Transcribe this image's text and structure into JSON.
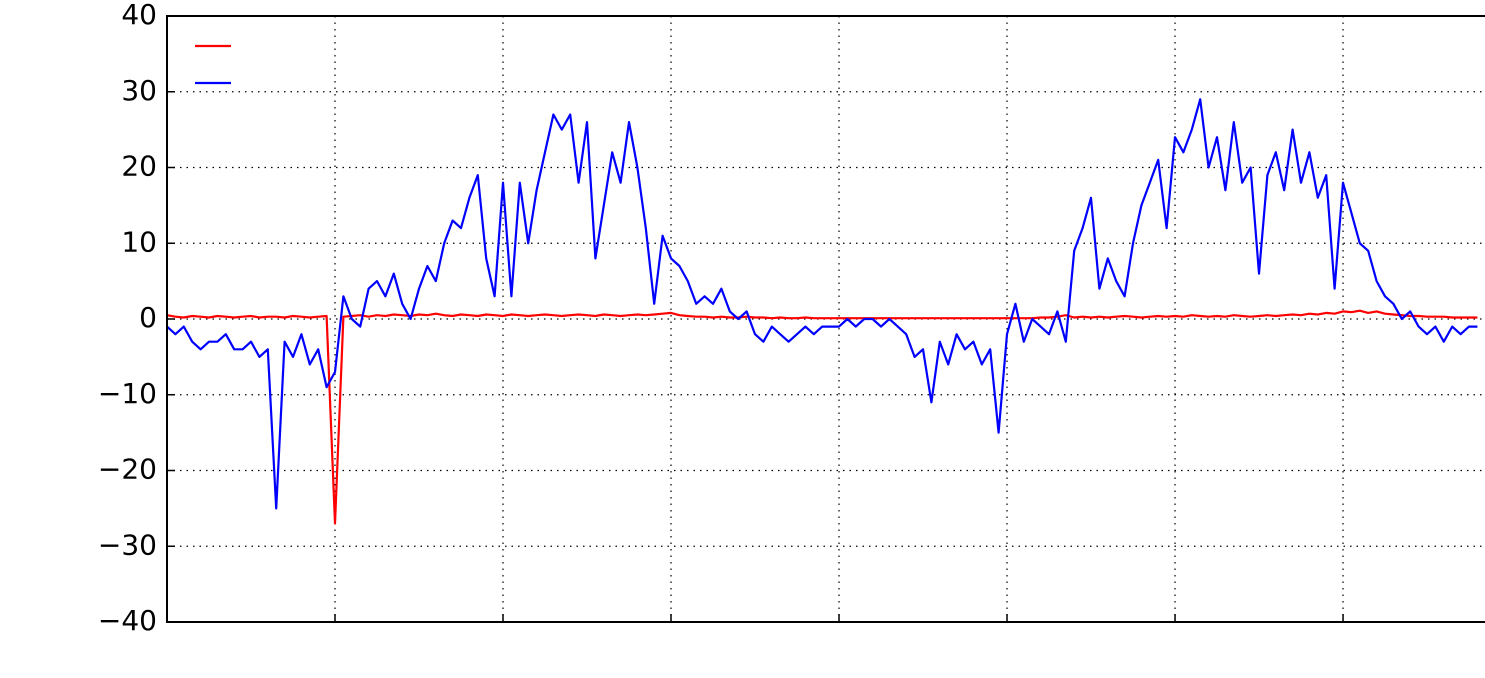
{
  "chart_data": {
    "type": "line",
    "x": [
      0,
      0.05,
      0.1,
      0.15,
      0.2,
      0.25,
      0.3,
      0.35,
      0.4,
      0.45,
      0.5,
      0.55,
      0.6,
      0.65,
      0.7,
      0.75,
      0.8,
      0.85,
      0.9,
      0.95,
      1,
      1.05,
      1.1,
      1.15,
      1.2,
      1.25,
      1.3,
      1.35,
      1.4,
      1.45,
      1.5,
      1.55,
      1.6,
      1.65,
      1.7,
      1.75,
      1.8,
      1.85,
      1.9,
      1.95,
      2,
      2.05,
      2.1,
      2.15,
      2.2,
      2.25,
      2.3,
      2.35,
      2.4,
      2.45,
      2.5,
      2.55,
      2.6,
      2.65,
      2.7,
      2.75,
      2.8,
      2.85,
      2.9,
      2.95,
      3,
      3.05,
      3.1,
      3.15,
      3.2,
      3.25,
      3.3,
      3.35,
      3.4,
      3.45,
      3.5,
      3.55,
      3.6,
      3.65,
      3.7,
      3.75,
      3.8,
      3.85,
      3.9,
      3.95,
      4,
      4.05,
      4.1,
      4.15,
      4.2,
      4.25,
      4.3,
      4.35,
      4.4,
      4.45,
      4.5,
      4.55,
      4.6,
      4.65,
      4.7,
      4.75,
      4.8,
      4.85,
      4.9,
      4.95,
      5,
      5.05,
      5.1,
      5.15,
      5.2,
      5.25,
      5.3,
      5.35,
      5.4,
      5.45,
      5.5,
      5.55,
      5.6,
      5.65,
      5.7,
      5.75,
      5.8,
      5.85,
      5.9,
      5.95,
      6,
      6.05,
      6.1,
      6.15,
      6.2,
      6.25,
      6.3,
      6.35,
      6.4,
      6.45,
      6.5,
      6.55,
      6.6,
      6.65,
      6.7,
      6.75,
      6.8,
      6.85,
      6.9,
      6.95,
      7,
      7.05,
      7.1,
      7.15,
      7.2,
      7.25,
      7.3,
      7.35,
      7.4,
      7.45,
      7.5,
      7.55,
      7.6,
      7.65,
      7.7,
      7.75,
      7.8
    ],
    "series": [
      {
        "color": "#ff0000",
        "values": [
          0.5,
          0.3,
          0.2,
          0.4,
          0.3,
          0.2,
          0.4,
          0.3,
          0.2,
          0.3,
          0.4,
          0.2,
          0.3,
          0.3,
          0.2,
          0.4,
          0.3,
          0.2,
          0.3,
          0.4,
          -27,
          0.3,
          0.4,
          0.5,
          0.3,
          0.5,
          0.4,
          0.6,
          0.5,
          0.4,
          0.6,
          0.5,
          0.7,
          0.5,
          0.4,
          0.6,
          0.5,
          0.4,
          0.6,
          0.5,
          0.4,
          0.6,
          0.5,
          0.4,
          0.5,
          0.6,
          0.5,
          0.4,
          0.5,
          0.6,
          0.5,
          0.4,
          0.6,
          0.5,
          0.4,
          0.5,
          0.6,
          0.5,
          0.6,
          0.7,
          0.8,
          0.5,
          0.4,
          0.3,
          0.3,
          0.2,
          0.3,
          0.2,
          0.2,
          0.3,
          0.2,
          0.2,
          0.1,
          0.2,
          0.1,
          0.1,
          0.2,
          0.1,
          0.1,
          0.1,
          0.1,
          0.1,
          0.1,
          0.1,
          0.1,
          0.1,
          0.1,
          0.1,
          0.1,
          0.1,
          0.1,
          0.1,
          0.1,
          0.1,
          0.1,
          0.1,
          0.1,
          0.1,
          0.1,
          0.1,
          0.1,
          0.1,
          0.1,
          0.1,
          0.2,
          0.2,
          0.3,
          0.5,
          0.2,
          0.3,
          0.2,
          0.3,
          0.2,
          0.3,
          0.4,
          0.3,
          0.2,
          0.3,
          0.4,
          0.3,
          0.4,
          0.3,
          0.5,
          0.4,
          0.3,
          0.4,
          0.3,
          0.5,
          0.4,
          0.3,
          0.4,
          0.5,
          0.4,
          0.5,
          0.6,
          0.5,
          0.7,
          0.6,
          0.8,
          0.7,
          1.0,
          0.9,
          1.1,
          0.8,
          1.0,
          0.7,
          0.6,
          0.5,
          0.4,
          0.4,
          0.3,
          0.3,
          0.3,
          0.2,
          0.2,
          0.2,
          0.2
        ]
      },
      {
        "color": "#0000ff",
        "values": [
          -1,
          -2,
          -1,
          -3,
          -4,
          -3,
          -3,
          -2,
          -4,
          -4,
          -3,
          -5,
          -4,
          -25,
          -3,
          -5,
          -2,
          -6,
          -4,
          -9,
          -7,
          3,
          0,
          -1,
          4,
          5,
          3,
          6,
          2,
          0,
          4,
          7,
          5,
          10,
          13,
          12,
          16,
          19,
          8,
          3,
          18,
          3,
          18,
          10,
          17,
          22,
          27,
          25,
          27,
          18,
          26,
          8,
          15,
          22,
          18,
          26,
          20,
          12,
          2,
          11,
          8,
          7,
          5,
          2,
          3,
          2,
          4,
          1,
          0,
          1,
          -2,
          -3,
          -1,
          -2,
          -3,
          -2,
          -1,
          -2,
          -1,
          -1,
          -1,
          0,
          -1,
          0,
          0,
          -1,
          0,
          -1,
          -2,
          -5,
          -4,
          -11,
          -3,
          -6,
          -2,
          -4,
          -3,
          -6,
          -4,
          -15,
          -2,
          2,
          -3,
          0,
          -1,
          -2,
          1,
          -3,
          9,
          12,
          16,
          4,
          8,
          5,
          3,
          10,
          15,
          18,
          21,
          12,
          24,
          22,
          25,
          29,
          20,
          24,
          17,
          26,
          18,
          20,
          6,
          19,
          22,
          17,
          25,
          18,
          22,
          16,
          19,
          4,
          18,
          14,
          10,
          9,
          5,
          3,
          2,
          0,
          1,
          -1,
          -2,
          -1,
          -3,
          -1,
          -2,
          -1,
          -1
        ]
      }
    ],
    "xlim": [
      0,
      7.845
    ],
    "xticks": [
      1,
      2,
      3,
      4,
      5,
      6,
      7
    ],
    "ylim": [
      -40,
      40
    ],
    "yticks": [
      {
        "value": -40,
        "label": "−40"
      },
      {
        "value": -30,
        "label": "−30"
      },
      {
        "value": -20,
        "label": "−20"
      },
      {
        "value": -10,
        "label": "−10"
      },
      0,
      10,
      20,
      30,
      40
    ],
    "grid": true,
    "legend": "upper left"
  }
}
